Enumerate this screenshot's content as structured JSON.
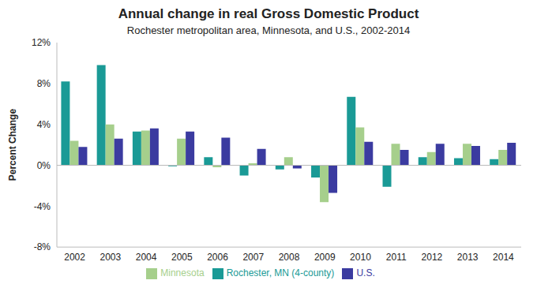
{
  "chart_data": {
    "type": "bar",
    "title": "Annual change in real Gross Domestic Product",
    "subtitle": "Rochester metropolitan area, Minnesota, and U.S., 2002-2014",
    "y_label": "Percent Change",
    "categories": [
      "2002",
      "2003",
      "2004",
      "2005",
      "2006",
      "2007",
      "2008",
      "2009",
      "2010",
      "2011",
      "2012",
      "2013",
      "2014"
    ],
    "series": [
      {
        "name": "Rochester, MN (4-county)",
        "color": "#1a9a96",
        "values": [
          8.2,
          9.8,
          3.3,
          -0.1,
          0.8,
          -1.0,
          -0.4,
          -1.2,
          6.7,
          -2.1,
          0.8,
          0.7,
          0.6
        ]
      },
      {
        "name": "Minnesota",
        "color": "#a6cf8c",
        "values": [
          2.4,
          4.0,
          3.4,
          2.6,
          -0.2,
          0.2,
          0.8,
          -3.6,
          3.7,
          2.1,
          1.3,
          2.1,
          1.5
        ]
      },
      {
        "name": "U.S.",
        "color": "#3b3ba0",
        "values": [
          1.8,
          2.6,
          3.6,
          3.3,
          2.7,
          1.6,
          -0.3,
          -2.7,
          2.3,
          1.5,
          2.1,
          1.9,
          2.2
        ]
      }
    ],
    "ylim": [
      -8,
      12
    ],
    "yticks": [
      {
        "value": -8,
        "label": "-8%"
      },
      {
        "value": -4,
        "label": "-4%"
      },
      {
        "value": 0,
        "label": "0%"
      },
      {
        "value": 4,
        "label": "4%"
      },
      {
        "value": 8,
        "label": "8%"
      },
      {
        "value": 12,
        "label": "12%"
      }
    ],
    "grid": false,
    "legend": "bottom"
  }
}
